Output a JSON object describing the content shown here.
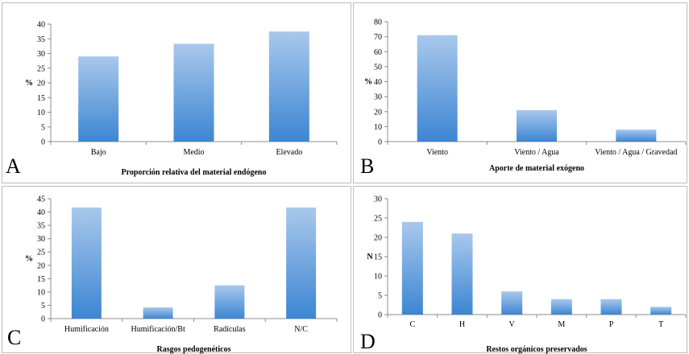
{
  "chart_data": [
    {
      "type": "bar",
      "panel_letter": "A",
      "categories": [
        "Bajo",
        "Medio",
        "Elevado"
      ],
      "values": [
        29,
        33.3,
        37.5
      ],
      "title": "",
      "xlabel": "Proporción relativa del material endógeno",
      "ylabel": "%",
      "ylim": [
        0,
        40
      ],
      "yticks": [
        0,
        5,
        10,
        15,
        20,
        25,
        30,
        35,
        40
      ],
      "grid": false,
      "bar_color_top": "#a9c8ec",
      "bar_color_bottom": "#3c86d2"
    },
    {
      "type": "bar",
      "panel_letter": "B",
      "categories": [
        "Viento",
        "Viento /  Agua",
        "Viento / Agua / Gravedad"
      ],
      "values": [
        71,
        21,
        8
      ],
      "title": "",
      "xlabel": "Aporte de material exógeno",
      "ylabel": "%",
      "ylim": [
        0,
        80
      ],
      "yticks": [
        0,
        10,
        20,
        30,
        40,
        50,
        60,
        70,
        80
      ],
      "grid": false,
      "bar_color_top": "#a9c8ec",
      "bar_color_bottom": "#3c86d2"
    },
    {
      "type": "bar",
      "panel_letter": "C",
      "categories": [
        "Humificación",
        "Humificación/Bt",
        "Radículas",
        "N/C"
      ],
      "values": [
        41.7,
        4.2,
        12.5,
        41.7
      ],
      "title": "",
      "xlabel": "Rasgos pedogenéticos",
      "ylabel": "%",
      "ylim": [
        0,
        45
      ],
      "yticks": [
        0,
        5,
        10,
        15,
        20,
        25,
        30,
        35,
        40,
        45
      ],
      "grid": false,
      "bar_color_top": "#a9c8ec",
      "bar_color_bottom": "#3c86d2"
    },
    {
      "type": "bar",
      "panel_letter": "D",
      "categories": [
        "C",
        "H",
        "V",
        "M",
        "P",
        "T"
      ],
      "values": [
        24,
        21,
        6,
        4,
        4,
        2
      ],
      "title": "",
      "xlabel": "Restos orgánicos preservados",
      "ylabel": "N",
      "ylim": [
        0,
        30
      ],
      "yticks": [
        0,
        5,
        10,
        15,
        20,
        25,
        30
      ],
      "grid": false,
      "bar_color_top": "#a9c8ec",
      "bar_color_bottom": "#3c86d2"
    }
  ]
}
